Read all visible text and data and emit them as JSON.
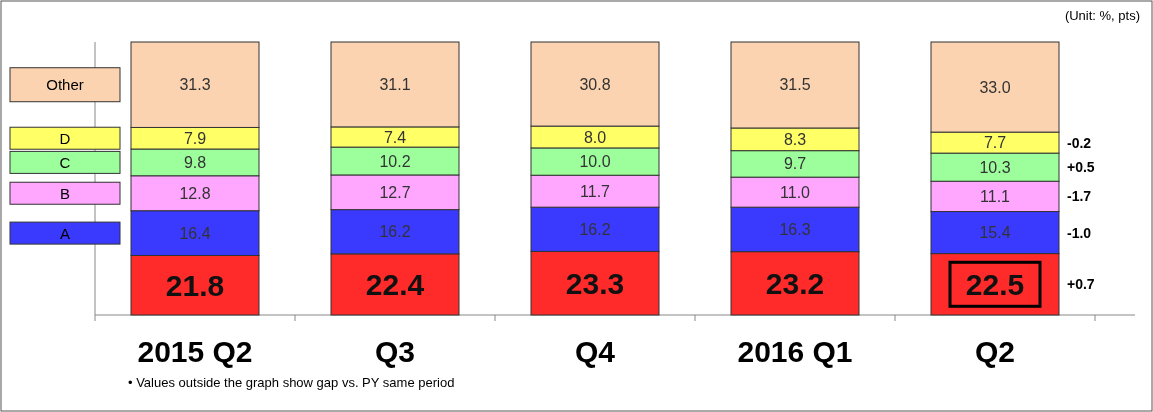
{
  "chart_data": {
    "type": "bar",
    "stacked": true,
    "legend": "left",
    "categories": [
      "2015 Q2",
      "Q3",
      "Q4",
      "2016 Q1",
      "Q2"
    ],
    "series": [
      {
        "color": "#ff2a2a",
        "values": [
          21.8,
          22.4,
          23.3,
          23.2,
          22.5
        ],
        "value_labels": [
          "21.8",
          "22.4",
          "23.3",
          "23.2",
          "22.5"
        ]
      },
      {
        "name": "A",
        "color": "#3a3aff",
        "values": [
          16.4,
          16.2,
          16.2,
          16.3,
          15.4
        ],
        "value_labels": [
          "16.4",
          "16.2",
          "16.2",
          "16.3",
          "15.4"
        ]
      },
      {
        "name": "B",
        "color": "#ffa6ff",
        "values": [
          12.8,
          12.7,
          11.7,
          11.0,
          11.1
        ],
        "value_labels": [
          "12.8",
          "12.7",
          "11.7",
          "11.0",
          "11.1"
        ]
      },
      {
        "name": "C",
        "color": "#9cff9c",
        "values": [
          9.8,
          10.2,
          10.0,
          9.7,
          10.3
        ],
        "value_labels": [
          "9.8",
          "10.2",
          "10.0",
          "9.7",
          "10.3"
        ]
      },
      {
        "name": "D",
        "color": "#ffff66",
        "values": [
          7.9,
          7.4,
          8.0,
          8.3,
          7.7
        ],
        "value_labels": [
          "7.9",
          "7.4",
          "8.0",
          "8.3",
          "7.7"
        ]
      },
      {
        "name": "Other",
        "color": "#fcd3b0",
        "values": [
          31.3,
          31.1,
          30.8,
          31.5,
          33.0
        ],
        "value_labels": [
          "31.3",
          "31.1",
          "30.8",
          "31.5",
          "33.0"
        ]
      }
    ],
    "annotations": [
      "(Unit: %, pts)",
      "• Values outside the graph show gap vs. PY same period",
      "+0.7",
      "-1.0",
      "-1.7",
      "+0.5",
      "-0.2"
    ]
  }
}
